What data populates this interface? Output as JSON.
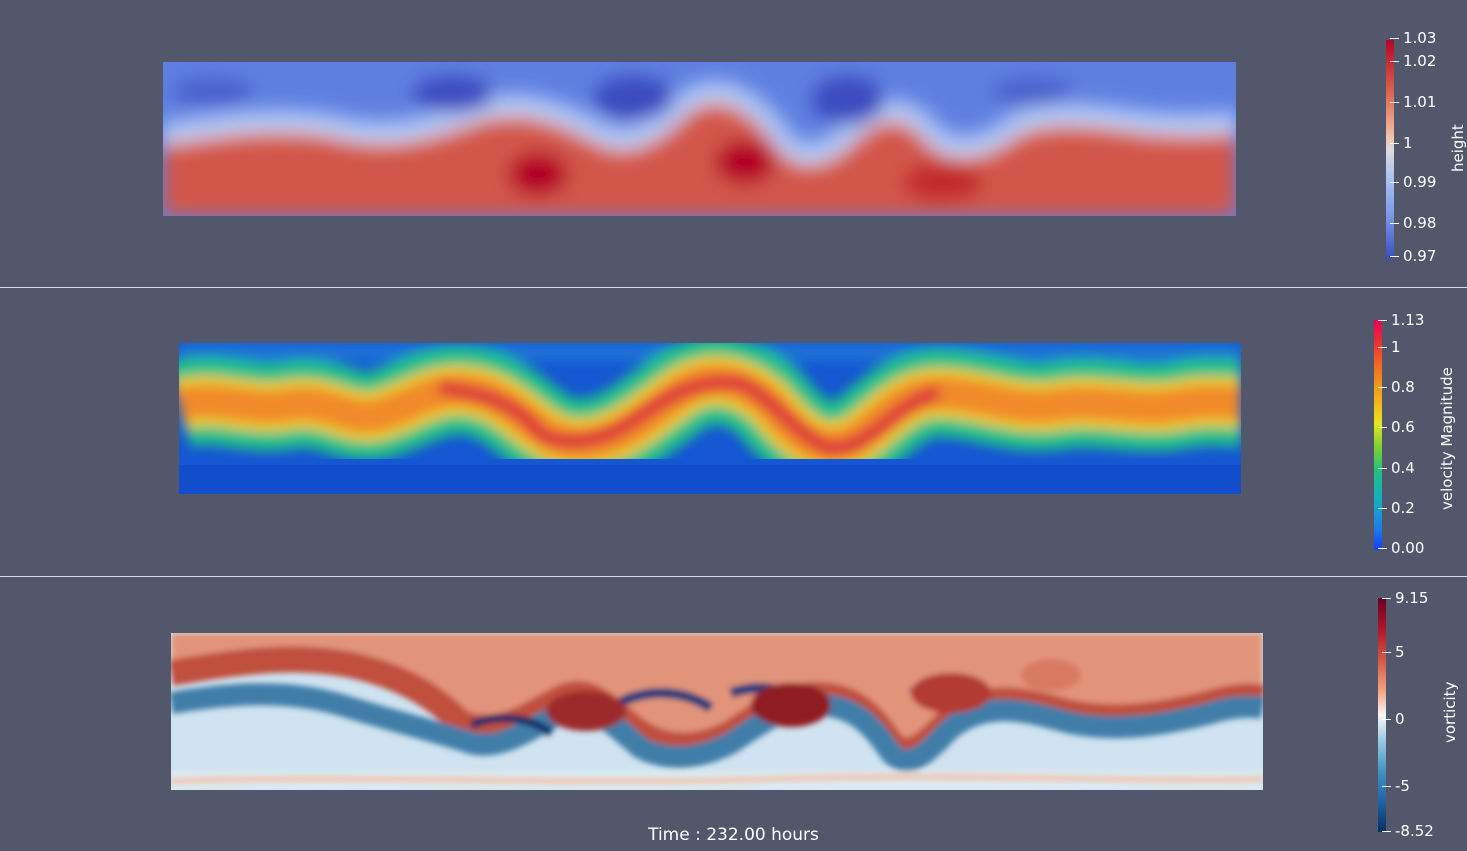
{
  "panels": {
    "height": {
      "colorbar_title": "height",
      "ticks": [
        "1.03",
        "1.02",
        "1.01",
        "1",
        "0.99",
        "0.98",
        "0.97"
      ]
    },
    "velocity": {
      "colorbar_title": "velocity Magnitude",
      "ticks": [
        "1.13",
        "1",
        "0.8",
        "0.6",
        "0.4",
        "0.2",
        "0.00"
      ]
    },
    "vorticity": {
      "colorbar_title": "vorticity",
      "ticks": [
        "9.15",
        "5",
        "0",
        "-5",
        "-8.52"
      ]
    }
  },
  "time_label": "Time : 232.00 hours",
  "colors": {
    "background": "#52576b",
    "height_high": "#b40426",
    "height_low": "#3b4cc0",
    "velocity_low": "#0a4fd8",
    "velocity_high": "#d81e3a",
    "vorticity_high": "#7a0a18",
    "vorticity_low": "#0a1e5a"
  }
}
